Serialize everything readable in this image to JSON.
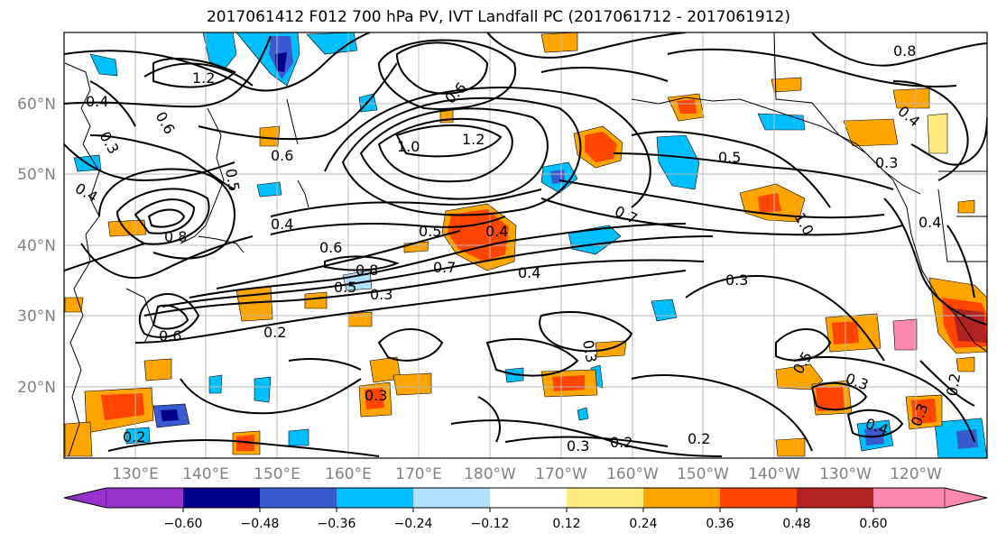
{
  "title": "2017061412 F012 700 hPa PV, IVT Landfall PC (2017061712 - 2017061912)",
  "lat_labels": [
    "60°N",
    "50°N",
    "40°N",
    "30°N",
    "20°N"
  ],
  "lon_labels": [
    "130°E",
    "140°E",
    "150°E",
    "160°E",
    "170°E",
    "180°W",
    "170°W",
    "160°W",
    "150°W",
    "140°W",
    "130°W",
    "120°W"
  ],
  "contour_labels": [
    "1.2",
    "0.4",
    "0.6",
    "0.3",
    "0.5",
    "0.4",
    "0.6",
    "0.8",
    "0.4",
    "0.6",
    "0.8",
    "0.5",
    "0.3",
    "0.2",
    "0.6",
    "1.0",
    "1.2",
    "0.5",
    "0.4",
    "0.7",
    "0.4",
    "0.3",
    "0.2",
    "0.3",
    "0.7",
    "1.0",
    "0.5",
    "0.3",
    "0.4",
    "0.3",
    "0.5",
    "0.3",
    "0.2",
    "0.2",
    "0.3",
    "0.2",
    "0.8",
    "0.4",
    "0.6",
    "0.3",
    "0.4"
  ],
  "colorbar": {
    "colors": [
      "#9932cc",
      "#00008b",
      "#3a5bd0",
      "#00bfff",
      "#b0e2ff",
      "#ffffff",
      "#ffeb80",
      "#ffa500",
      "#ff4500",
      "#b22222",
      "#ff88b0"
    ],
    "tick_labels": [
      "−0.60",
      "−0.48",
      "−0.36",
      "−0.24",
      "−0.12",
      "0.12",
      "0.24",
      "0.36",
      "0.48",
      "0.60"
    ]
  }
}
